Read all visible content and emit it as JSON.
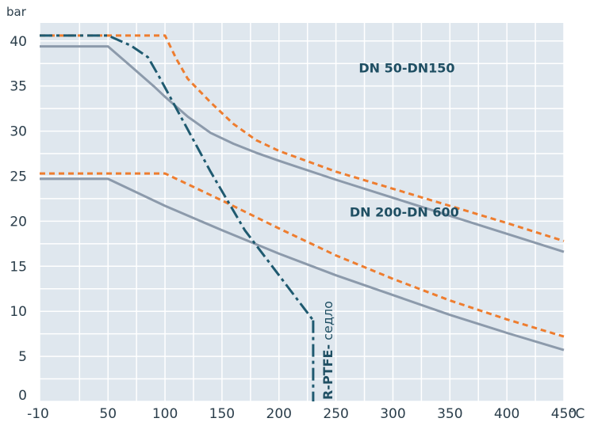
{
  "chart_data": {
    "type": "line",
    "y_unit": "bar",
    "x_unit": "°C",
    "xlim": [
      -10,
      450
    ],
    "ylim": [
      0,
      42
    ],
    "x_ticks": [
      {
        "value": -10,
        "label": "-10"
      },
      {
        "value": 50,
        "label": "50"
      },
      {
        "value": 100,
        "label": "100"
      },
      {
        "value": 150,
        "label": "150"
      },
      {
        "value": 200,
        "label": "200"
      },
      {
        "value": 250,
        "label": "250"
      },
      {
        "value": 300,
        "label": "300"
      },
      {
        "value": 350,
        "label": "350"
      },
      {
        "value": 400,
        "label": "400"
      },
      {
        "value": 450,
        "label": "450"
      }
    ],
    "y_ticks": [
      {
        "value": 0,
        "label": "0"
      },
      {
        "value": 5,
        "label": "5"
      },
      {
        "value": 10,
        "label": "10"
      },
      {
        "value": 15,
        "label": "15"
      },
      {
        "value": 20,
        "label": "20"
      },
      {
        "value": 25,
        "label": "25"
      },
      {
        "value": 30,
        "label": "30"
      },
      {
        "value": 35,
        "label": "35"
      },
      {
        "value": 40,
        "label": "40"
      }
    ],
    "grid": true,
    "background": "#dfe7ee",
    "annotations": [
      {
        "text": "DN 50-DN150",
        "x": 270,
        "y": 36.5
      },
      {
        "text": "DN 200-DN 600",
        "x": 262,
        "y": 20.5
      }
    ],
    "seat_label": {
      "bold": "R-PTFE-",
      "normal": " седло"
    },
    "series": [
      {
        "style": "solid",
        "color": "#8c9aab",
        "width": 3,
        "points": [
          [
            -10,
            39.4
          ],
          [
            50,
            39.4
          ],
          [
            70,
            37.2
          ],
          [
            90,
            35
          ],
          [
            100,
            33.8
          ],
          [
            120,
            31.6
          ],
          [
            140,
            29.8
          ],
          [
            160,
            28.6
          ],
          [
            180,
            27.6
          ],
          [
            200,
            26.7
          ],
          [
            250,
            24.6
          ],
          [
            300,
            22.6
          ],
          [
            350,
            20.6
          ],
          [
            400,
            18.6
          ],
          [
            450,
            16.6
          ]
        ]
      },
      {
        "style": "dashed",
        "color": "#ee7d2f",
        "width": 3,
        "points": [
          [
            -10,
            40.6
          ],
          [
            100,
            40.6
          ],
          [
            110,
            38
          ],
          [
            120,
            35.8
          ],
          [
            140,
            33.2
          ],
          [
            160,
            30.8
          ],
          [
            180,
            29
          ],
          [
            200,
            27.8
          ],
          [
            250,
            25.5
          ],
          [
            300,
            23.6
          ],
          [
            350,
            21.7
          ],
          [
            400,
            19.8
          ],
          [
            450,
            17.8
          ]
        ]
      },
      {
        "style": "solid",
        "color": "#8c9aab",
        "width": 3,
        "points": [
          [
            -10,
            24.7
          ],
          [
            50,
            24.7
          ],
          [
            100,
            21.7
          ],
          [
            150,
            19
          ],
          [
            200,
            16.4
          ],
          [
            250,
            14
          ],
          [
            300,
            11.8
          ],
          [
            350,
            9.6
          ],
          [
            400,
            7.6
          ],
          [
            450,
            5.7
          ]
        ]
      },
      {
        "style": "dashed",
        "color": "#ee7d2f",
        "width": 3,
        "points": [
          [
            -10,
            25.3
          ],
          [
            100,
            25.3
          ],
          [
            150,
            22.3
          ],
          [
            200,
            19.2
          ],
          [
            250,
            16.2
          ],
          [
            300,
            13.6
          ],
          [
            350,
            11.2
          ],
          [
            400,
            9.1
          ],
          [
            450,
            7.2
          ]
        ]
      },
      {
        "style": "dashdot",
        "color": "#1f5a70",
        "width": 3,
        "points": [
          [
            -10,
            40.6
          ],
          [
            50,
            40.6
          ],
          [
            70,
            39.5
          ],
          [
            85,
            38.2
          ],
          [
            95,
            36
          ],
          [
            110,
            32.5
          ],
          [
            140,
            25.5
          ],
          [
            170,
            19
          ],
          [
            200,
            14
          ],
          [
            230,
            9
          ]
        ]
      },
      {
        "style": "dashdot",
        "color": "#1f5a70",
        "width": 3,
        "points": [
          [
            230,
            9
          ],
          [
            230,
            0
          ]
        ]
      }
    ]
  }
}
